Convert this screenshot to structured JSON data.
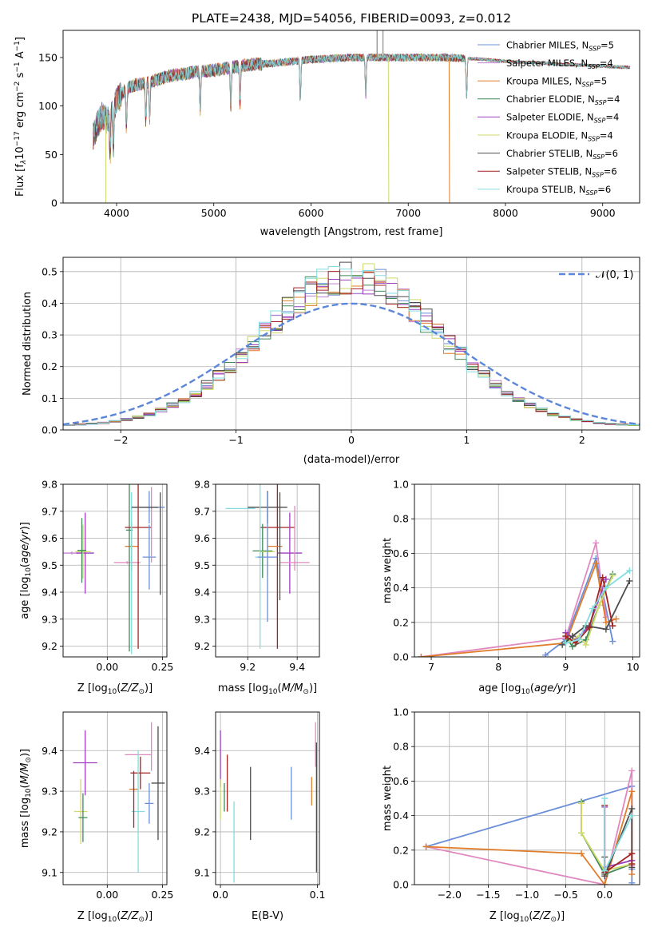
{
  "figure": {
    "title": "PLATE=2438, MJD=54056, FIBERID=0093, z=0.012"
  },
  "colors": {
    "chabrier_miles": "#6a8fd8",
    "salpeter_miles": "#c080d0",
    "kroupa_miles": "#e07c2a",
    "chabrier_elodie": "#3f8a58",
    "salpeter_elodie": "#9b3fc0",
    "kroupa_elodie": "#cfd96a",
    "chabrier_stelib": "#4d4d4d",
    "salpeter_stelib": "#a42424",
    "kroupa_stelib": "#83dde0",
    "pink": "#e088c0",
    "normal_curve": "#5b86d9"
  },
  "chart_data": [
    {
      "id": "spectrum",
      "type": "line",
      "title": "PLATE=2438, MJD=54056, FIBERID=0093, z=0.012",
      "xlabel": "wavelength [Angstrom, rest frame]",
      "ylabel": "Flux [f_λ 10^-17 erg cm^-2 s^-1 A^-1]",
      "xlim": [
        3450,
        9380
      ],
      "ylim": [
        0,
        178
      ],
      "xticks": [
        4000,
        5000,
        6000,
        7000,
        8000,
        9000
      ],
      "yticks": [
        0,
        50,
        100,
        150
      ],
      "grid": false,
      "legend_position": "top-right",
      "series": [
        {
          "name": "Chabrier MILES, N_SSP=5",
          "color": "#6a8fd8"
        },
        {
          "name": "Salpeter MILES, N_SSP=4",
          "color": "#c080d0"
        },
        {
          "name": "Kroupa MILES, N_SSP=5",
          "color": "#e07c2a"
        },
        {
          "name": "Chabrier ELODIE, N_SSP=4",
          "color": "#3f8a58"
        },
        {
          "name": "Salpeter ELODIE, N_SSP=4",
          "color": "#9b3fc0"
        },
        {
          "name": "Kroupa ELODIE, N_SSP=4",
          "color": "#cfd96a"
        },
        {
          "name": "Chabrier STELIB, N_SSP=6",
          "color": "#4d4d4d"
        },
        {
          "name": "Salpeter STELIB, N_SSP=6",
          "color": "#a42424"
        },
        {
          "name": "Kroupa STELIB, N_SSP=6",
          "color": "#83dde0"
        }
      ],
      "continuum": {
        "x": [
          3760,
          3800,
          3850,
          3900,
          3950,
          4000,
          4100,
          4200,
          4300,
          4400,
          4500,
          4600,
          4700,
          4800,
          5000,
          5200,
          5400,
          5600,
          5800,
          6000,
          6200,
          6400,
          6600,
          6800,
          7000,
          7200,
          7400,
          7600,
          7800,
          8000,
          8200,
          8400,
          8600,
          8800,
          9000,
          9200,
          9280
        ],
        "y": [
          68,
          80,
          90,
          85,
          96,
          105,
          118,
          122,
          124,
          126,
          130,
          132,
          133,
          135,
          137,
          140,
          143,
          144,
          146,
          148,
          149,
          150,
          150,
          150,
          150,
          150,
          150,
          149,
          148,
          146,
          145,
          144,
          143,
          142,
          141,
          140,
          140
        ]
      },
      "absorption_features": [
        3934,
        3968,
        4101,
        4300,
        4340,
        4861,
        5175,
        5270,
        5890,
        6563,
        7600
      ]
    },
    {
      "id": "residuals",
      "type": "bar",
      "xlabel": "(data-model)/error",
      "ylabel": "Normed distribution",
      "xlim": [
        -2.5,
        2.5
      ],
      "ylim": [
        0,
        0.545
      ],
      "xticks": [
        -2,
        -1,
        0,
        1,
        2
      ],
      "yticks": [
        0.0,
        0.1,
        0.2,
        0.3,
        0.4,
        0.5
      ],
      "grid": true,
      "legend_position": "top-right",
      "legend_label": "𝒩(0, 1)",
      "bin_width": 0.1
    },
    {
      "id": "age-vs-Z",
      "type": "scatter",
      "xlabel": "Z [log10(Z/Z⊙)]",
      "ylabel": "age  [log10(age/yr)]",
      "xlim": [
        -0.2,
        0.27
      ],
      "ylim": [
        9.16,
        9.8
      ],
      "xticks": [
        0.0,
        0.25
      ],
      "xtick_labels": [
        "0.00",
        "0.25"
      ],
      "yticks": [
        9.2,
        9.3,
        9.4,
        9.5,
        9.6,
        9.7,
        9.8
      ],
      "grid": true,
      "points": [
        {
          "x": -0.16,
          "y": 9.545,
          "xerr": 0.04,
          "yerr": 0.005,
          "color": "#c080d0"
        },
        {
          "x": -0.1,
          "y": 9.545,
          "xerr": 0.04,
          "yerr": 0.15,
          "color": "#9b3fc0"
        },
        {
          "x": -0.11,
          "y": 9.55,
          "xerr": 0.035,
          "yerr": 0.1,
          "color": "#cfd96a"
        },
        {
          "x": -0.115,
          "y": 9.555,
          "xerr": 0.02,
          "yerr": 0.12,
          "color": "#3f8a58"
        },
        {
          "x": 0.09,
          "y": 9.51,
          "xerr": 0.06,
          "yerr": 0.005,
          "color": "#e088c0"
        },
        {
          "x": 0.11,
          "y": 9.57,
          "xerr": 0.03,
          "yerr": 0.09,
          "color": "#e07c2a"
        },
        {
          "x": 0.1,
          "y": 9.63,
          "xerr": 0.015,
          "yerr": 0.45,
          "color": "#3f8a58"
        },
        {
          "x": 0.14,
          "y": 9.64,
          "xerr": 0.06,
          "yerr": 0.45,
          "color": "#a42424"
        },
        {
          "x": 0.11,
          "y": 9.47,
          "xerr": 0.0,
          "yerr": 0.3,
          "color": "#83dde0"
        },
        {
          "x": 0.19,
          "y": 9.53,
          "xerr": 0.03,
          "yerr": 0.12,
          "color": "#6a8fd8"
        },
        {
          "x": 0.2,
          "y": 9.65,
          "xerr": 0.0,
          "yerr": 0.14,
          "color": "#e088c0"
        },
        {
          "x": 0.19,
          "y": 9.715,
          "xerr": 0.07,
          "yerr": 0.06,
          "color": "#6a8fd8"
        },
        {
          "x": 0.24,
          "y": 9.58,
          "xerr": 0.0,
          "yerr": 0.19,
          "color": "#4d4d4d"
        },
        {
          "x": 0.17,
          "y": 9.715,
          "xerr": 0.06,
          "yerr": 0.0,
          "color": "#4d4d4d"
        }
      ]
    },
    {
      "id": "age-vs-mass",
      "type": "scatter",
      "xlabel": "mass [log10(M/M⊙)]",
      "ylabel": "",
      "xlim": [
        9.07,
        9.49
      ],
      "ylim": [
        9.16,
        9.8
      ],
      "xticks": [
        9.2,
        9.4
      ],
      "xtick_labels": [
        "9.2",
        "9.4"
      ],
      "yticks": [
        9.2,
        9.3,
        9.4,
        9.5,
        9.6,
        9.7,
        9.8
      ],
      "grid": true,
      "points": [
        {
          "x": 9.17,
          "y": 9.71,
          "xerr": 0.06,
          "yerr": 0.0,
          "color": "#83dde0"
        },
        {
          "x": 9.28,
          "y": 9.715,
          "xerr": 0.08,
          "yerr": 0.06,
          "color": "#4d4d4d"
        },
        {
          "x": 9.32,
          "y": 9.64,
          "xerr": 0.07,
          "yerr": 0.45,
          "color": "#a42424"
        },
        {
          "x": 9.26,
          "y": 9.553,
          "xerr": 0.04,
          "yerr": 0.1,
          "color": "#3f8a58"
        },
        {
          "x": 9.28,
          "y": 9.55,
          "xerr": 0.03,
          "yerr": 0.09,
          "color": "#cfd96a"
        },
        {
          "x": 9.31,
          "y": 9.57,
          "xerr": 0.03,
          "yerr": 0.0,
          "color": "#e07c2a"
        },
        {
          "x": 9.25,
          "y": 9.53,
          "xerr": 0.02,
          "yerr": 0.34,
          "color": "#83dde0"
        },
        {
          "x": 9.28,
          "y": 9.53,
          "xerr": 0.04,
          "yerr": 0.24,
          "color": "#6a8fd8"
        },
        {
          "x": 9.37,
          "y": 9.545,
          "xerr": 0.05,
          "yerr": 0.15,
          "color": "#9b3fc0"
        },
        {
          "x": 9.39,
          "y": 9.6,
          "xerr": 0.0,
          "yerr": 0.12,
          "color": "#e088c0"
        },
        {
          "x": 9.39,
          "y": 9.51,
          "xerr": 0.06,
          "yerr": 0.005,
          "color": "#e088c0"
        },
        {
          "x": 9.33,
          "y": 9.57,
          "xerr": 0.0,
          "yerr": 0.2,
          "color": "#4d4d4d"
        }
      ]
    },
    {
      "id": "weight-vs-age",
      "type": "line",
      "xlabel": "age  [log10(age/yr)]",
      "ylabel": "mass weight",
      "xlim": [
        6.75,
        10.1
      ],
      "ylim": [
        0,
        1
      ],
      "xticks": [
        7,
        8,
        9,
        10
      ],
      "yticks": [
        0.0,
        0.2,
        0.4,
        0.6,
        0.8,
        1.0
      ],
      "grid": true,
      "series": [
        {
          "color": "#6a8fd8",
          "x": [
            8.7,
            9.0,
            9.45,
            9.7
          ],
          "y": [
            0.01,
            0.1,
            0.57,
            0.09
          ]
        },
        {
          "color": "#e088c0",
          "x": [
            6.85,
            9.0,
            9.45,
            9.6
          ],
          "y": [
            0.0,
            0.11,
            0.66,
            0.23
          ]
        },
        {
          "color": "#e07c2a",
          "x": [
            6.85,
            9.0,
            9.45,
            9.6,
            9.75
          ],
          "y": [
            0.0,
            0.08,
            0.54,
            0.2,
            0.22
          ]
        },
        {
          "color": "#3f8a58",
          "x": [
            9.0,
            9.1,
            9.3,
            9.5,
            9.7
          ],
          "y": [
            0.12,
            0.06,
            0.1,
            0.3,
            0.48
          ]
        },
        {
          "color": "#9b3fc0",
          "x": [
            9.0,
            9.15,
            9.35,
            9.6
          ],
          "y": [
            0.14,
            0.1,
            0.18,
            0.45
          ]
        },
        {
          "color": "#cfd96a",
          "x": [
            9.0,
            9.2,
            9.3,
            9.5,
            9.7
          ],
          "y": [
            0.08,
            0.12,
            0.07,
            0.3,
            0.47
          ]
        },
        {
          "color": "#4d4d4d",
          "x": [
            8.95,
            9.1,
            9.3,
            9.6,
            9.95
          ],
          "y": [
            0.07,
            0.12,
            0.18,
            0.16,
            0.44
          ]
        },
        {
          "color": "#a42424",
          "x": [
            9.0,
            9.15,
            9.35,
            9.55,
            9.7
          ],
          "y": [
            0.12,
            0.08,
            0.17,
            0.46,
            0.18
          ]
        },
        {
          "color": "#83dde0",
          "x": [
            9.0,
            9.2,
            9.4,
            9.6,
            9.95
          ],
          "y": [
            0.08,
            0.1,
            0.28,
            0.4,
            0.5
          ]
        }
      ]
    },
    {
      "id": "mass-vs-Z",
      "type": "scatter",
      "xlabel": "Z [log10(Z/Z⊙)]",
      "ylabel": "mass [log10(M/M⊙)]",
      "xlim": [
        -0.2,
        0.27
      ],
      "ylim": [
        9.07,
        9.495
      ],
      "xticks": [
        0.0,
        0.25
      ],
      "xtick_labels": [
        "0.00",
        "0.25"
      ],
      "yticks": [
        9.1,
        9.2,
        9.3,
        9.4
      ],
      "grid": true,
      "points": [
        {
          "x": -0.1,
          "y": 9.37,
          "xerr": 0.055,
          "yerr": 0.08,
          "color": "#9b3fc0"
        },
        {
          "x": -0.12,
          "y": 9.25,
          "xerr": 0.03,
          "yerr": 0.08,
          "color": "#cfd96a"
        },
        {
          "x": -0.11,
          "y": 9.235,
          "xerr": 0.02,
          "yerr": 0.06,
          "color": "#3f8a58"
        },
        {
          "x": 0.14,
          "y": 9.39,
          "xerr": 0.06,
          "yerr": 0.0,
          "color": "#e088c0"
        },
        {
          "x": 0.15,
          "y": 9.345,
          "xerr": 0.045,
          "yerr": 0.04,
          "color": "#a42424"
        },
        {
          "x": 0.12,
          "y": 9.305,
          "xerr": 0.02,
          "yerr": 0.0,
          "color": "#e07c2a"
        },
        {
          "x": 0.14,
          "y": 9.25,
          "xerr": 0.03,
          "yerr": 0.15,
          "color": "#83dde0"
        },
        {
          "x": 0.19,
          "y": 9.27,
          "xerr": 0.02,
          "yerr": 0.05,
          "color": "#6a8fd8"
        },
        {
          "x": 0.2,
          "y": 9.41,
          "xerr": 0.0,
          "yerr": 0.06,
          "color": "#e088c0"
        },
        {
          "x": 0.23,
          "y": 9.32,
          "xerr": 0.03,
          "yerr": 0.14,
          "color": "#4d4d4d"
        },
        {
          "x": 0.12,
          "y": 9.28,
          "xerr": 0.0,
          "yerr": 0.07,
          "color": "#a42424"
        }
      ]
    },
    {
      "id": "mass-vs-EBV",
      "type": "scatter",
      "xlabel": "E(B-V)",
      "ylabel": "",
      "xlim": [
        -0.005,
        0.102
      ],
      "ylim": [
        9.07,
        9.495
      ],
      "xticks": [
        0.0,
        0.1
      ],
      "xtick_labels": [
        "0.0",
        "0.1"
      ],
      "yticks": [
        9.1,
        9.2,
        9.3,
        9.4
      ],
      "grid": true,
      "points": [
        {
          "x": 0.0,
          "y": 9.38,
          "xerr": 0.0,
          "yerr": 0.07,
          "color": "#9b3fc0"
        },
        {
          "x": 0.0,
          "y": 9.28,
          "xerr": 0.0,
          "yerr": 0.05,
          "color": "#cfd96a"
        },
        {
          "x": 0.007,
          "y": 9.32,
          "xerr": 0.0,
          "yerr": 0.07,
          "color": "#a42424"
        },
        {
          "x": 0.004,
          "y": 9.285,
          "xerr": 0.0,
          "yerr": 0.035,
          "color": "#3f8a58"
        },
        {
          "x": 0.014,
          "y": 9.175,
          "xerr": 0.0,
          "yerr": 0.1,
          "color": "#83dde0"
        },
        {
          "x": 0.031,
          "y": 9.27,
          "xerr": 0.0,
          "yerr": 0.09,
          "color": "#4d4d4d"
        },
        {
          "x": 0.073,
          "y": 9.295,
          "xerr": 0.0,
          "yerr": 0.065,
          "color": "#6a8fd8"
        },
        {
          "x": 0.094,
          "y": 9.3,
          "xerr": 0.0,
          "yerr": 0.035,
          "color": "#e07c2a"
        },
        {
          "x": 0.098,
          "y": 9.415,
          "xerr": 0.0,
          "yerr": 0.055,
          "color": "#e088c0"
        },
        {
          "x": 0.099,
          "y": 9.26,
          "xerr": 0.0,
          "yerr": 0.16,
          "color": "#4d4d4d"
        }
      ]
    },
    {
      "id": "weight-vs-Z",
      "type": "line",
      "xlabel": "Z [log10(Z/Z⊙)]",
      "ylabel": "mass weight",
      "xlim": [
        -2.45,
        0.45
      ],
      "ylim": [
        0,
        1
      ],
      "xticks": [
        -2.0,
        -1.5,
        -1.0,
        -0.5,
        0.0
      ],
      "yticks": [
        0.0,
        0.2,
        0.4,
        0.6,
        0.8,
        1.0
      ],
      "grid": true,
      "series": [
        {
          "color": "#6a8fd8",
          "x": [
            -2.3,
            0.35,
            0.35,
            0.35
          ],
          "y": [
            0.22,
            0.57,
            0.09,
            0.01
          ]
        },
        {
          "color": "#e088c0",
          "x": [
            -2.3,
            0.0,
            0.35,
            0.35
          ],
          "y": [
            0.22,
            0.0,
            0.66,
            0.11
          ]
        },
        {
          "color": "#e07c2a",
          "x": [
            -2.3,
            -0.3,
            0.0,
            0.35,
            0.35
          ],
          "y": [
            0.22,
            0.18,
            0.0,
            0.54,
            0.06
          ]
        },
        {
          "color": "#3f8a58",
          "x": [
            -0.3,
            -0.3,
            0.0,
            0.35
          ],
          "y": [
            0.48,
            0.3,
            0.06,
            0.12
          ]
        },
        {
          "color": "#9b3fc0",
          "x": [
            0.0,
            0.0,
            0.35
          ],
          "y": [
            0.45,
            0.1,
            0.14
          ]
        },
        {
          "color": "#cfd96a",
          "x": [
            -0.3,
            -0.3,
            0.0,
            0.35
          ],
          "y": [
            0.47,
            0.3,
            0.08,
            0.12
          ]
        },
        {
          "color": "#4d4d4d",
          "x": [
            0.0,
            0.0,
            0.35,
            0.35
          ],
          "y": [
            0.16,
            0.05,
            0.44,
            0.1
          ]
        },
        {
          "color": "#a42424",
          "x": [
            0.0,
            0.0,
            0.35,
            0.35
          ],
          "y": [
            0.46,
            0.07,
            0.18,
            0.12
          ]
        },
        {
          "color": "#83dde0",
          "x": [
            0.0,
            0.0,
            0.35
          ],
          "y": [
            0.5,
            0.08,
            0.4
          ]
        }
      ]
    }
  ]
}
